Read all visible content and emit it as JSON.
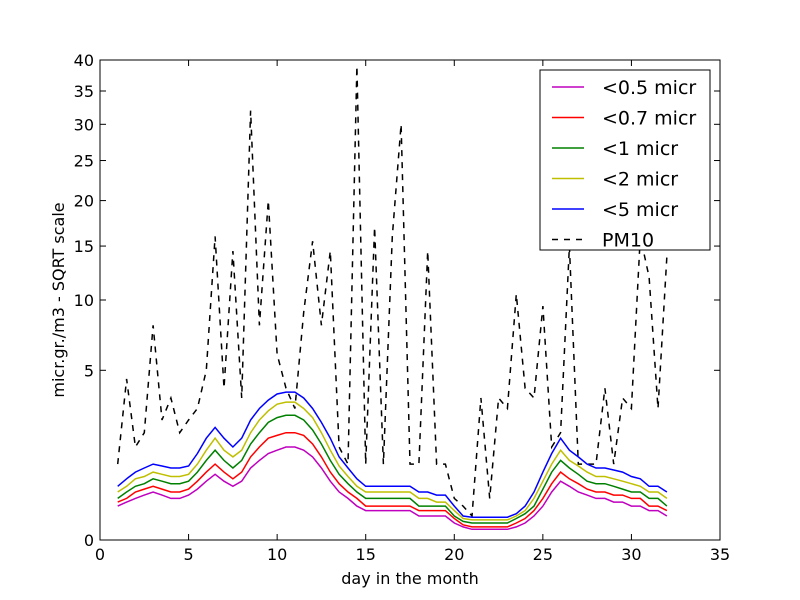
{
  "chart_data": {
    "type": "line",
    "title": "",
    "xlabel": "day in the month",
    "ylabel": "micr.gr./m3 - SQRT scale",
    "xlim": [
      0,
      35
    ],
    "ylim": [
      0,
      40
    ],
    "y_scale": "sqrt",
    "grid": false,
    "legend_position": "top-right",
    "x_ticks": [
      "0",
      "5",
      "10",
      "15",
      "20",
      "25",
      "30",
      "35"
    ],
    "y_ticks": [
      "0",
      "5",
      "10",
      "15",
      "20",
      "25",
      "30",
      "35",
      "40"
    ],
    "x_tick_values": [
      0,
      5,
      10,
      15,
      20,
      25,
      30,
      35
    ],
    "y_tick_values": [
      0,
      5,
      10,
      15,
      20,
      25,
      30,
      35,
      40
    ],
    "x": [
      1.0,
      1.5,
      2.0,
      2.5,
      3.0,
      3.5,
      4.0,
      4.5,
      5.0,
      5.5,
      6.0,
      6.5,
      7.0,
      7.5,
      8.0,
      8.5,
      9.0,
      9.5,
      10.0,
      10.5,
      11.0,
      11.5,
      12.0,
      12.5,
      13.0,
      13.5,
      14.0,
      14.5,
      15.0,
      15.5,
      16.0,
      16.5,
      17.0,
      17.5,
      18.0,
      18.5,
      19.0,
      19.5,
      20.0,
      20.5,
      21.0,
      21.5,
      22.0,
      22.5,
      23.0,
      23.5,
      24.0,
      24.5,
      25.0,
      25.5,
      26.0,
      26.5,
      27.0,
      27.5,
      28.0,
      28.5,
      29.0,
      29.5,
      30.0,
      30.5,
      31.0,
      31.5,
      32.0
    ],
    "series": [
      {
        "name": "<0.5 micr",
        "color": "#bf00bf",
        "dash": "solid",
        "values": [
          0.2,
          0.25,
          0.3,
          0.35,
          0.4,
          0.35,
          0.3,
          0.3,
          0.35,
          0.45,
          0.6,
          0.75,
          0.6,
          0.5,
          0.6,
          0.9,
          1.1,
          1.3,
          1.4,
          1.5,
          1.5,
          1.4,
          1.2,
          0.9,
          0.6,
          0.4,
          0.3,
          0.2,
          0.15,
          0.15,
          0.15,
          0.15,
          0.15,
          0.15,
          0.1,
          0.1,
          0.1,
          0.1,
          0.05,
          0.03,
          0.02,
          0.02,
          0.02,
          0.02,
          0.02,
          0.03,
          0.05,
          0.1,
          0.2,
          0.4,
          0.6,
          0.5,
          0.4,
          0.35,
          0.3,
          0.3,
          0.25,
          0.25,
          0.2,
          0.2,
          0.15,
          0.15,
          0.1
        ]
      },
      {
        "name": "<0.7 micr",
        "color": "#ff0000",
        "dash": "solid",
        "values": [
          0.25,
          0.3,
          0.4,
          0.45,
          0.5,
          0.45,
          0.4,
          0.4,
          0.45,
          0.6,
          0.8,
          1.0,
          0.8,
          0.65,
          0.8,
          1.2,
          1.5,
          1.8,
          1.9,
          2.0,
          2.0,
          1.9,
          1.6,
          1.2,
          0.8,
          0.55,
          0.4,
          0.3,
          0.2,
          0.2,
          0.2,
          0.2,
          0.2,
          0.2,
          0.15,
          0.15,
          0.15,
          0.15,
          0.08,
          0.04,
          0.03,
          0.03,
          0.03,
          0.03,
          0.03,
          0.05,
          0.08,
          0.15,
          0.3,
          0.55,
          0.8,
          0.65,
          0.55,
          0.45,
          0.4,
          0.4,
          0.35,
          0.35,
          0.3,
          0.3,
          0.2,
          0.2,
          0.15
        ]
      },
      {
        "name": "<1 micr",
        "color": "#008000",
        "dash": "solid",
        "values": [
          0.3,
          0.4,
          0.5,
          0.55,
          0.65,
          0.6,
          0.55,
          0.55,
          0.6,
          0.8,
          1.1,
          1.4,
          1.1,
          0.9,
          1.1,
          1.6,
          2.0,
          2.4,
          2.6,
          2.7,
          2.7,
          2.5,
          2.1,
          1.6,
          1.1,
          0.75,
          0.55,
          0.4,
          0.3,
          0.3,
          0.3,
          0.3,
          0.3,
          0.3,
          0.2,
          0.2,
          0.2,
          0.2,
          0.1,
          0.06,
          0.05,
          0.05,
          0.05,
          0.05,
          0.05,
          0.08,
          0.12,
          0.2,
          0.45,
          0.8,
          1.1,
          0.9,
          0.75,
          0.6,
          0.55,
          0.55,
          0.5,
          0.45,
          0.4,
          0.4,
          0.3,
          0.3,
          0.2
        ]
      },
      {
        "name": "<2 micr",
        "color": "#bfbf00",
        "dash": "solid",
        "values": [
          0.4,
          0.5,
          0.65,
          0.7,
          0.8,
          0.75,
          0.7,
          0.7,
          0.75,
          1.0,
          1.4,
          1.8,
          1.4,
          1.2,
          1.4,
          2.0,
          2.5,
          2.9,
          3.2,
          3.3,
          3.3,
          3.0,
          2.6,
          2.0,
          1.4,
          0.95,
          0.7,
          0.5,
          0.4,
          0.4,
          0.4,
          0.4,
          0.4,
          0.4,
          0.3,
          0.3,
          0.25,
          0.25,
          0.15,
          0.08,
          0.07,
          0.07,
          0.07,
          0.07,
          0.07,
          0.1,
          0.15,
          0.3,
          0.6,
          1.0,
          1.4,
          1.1,
          0.95,
          0.8,
          0.7,
          0.7,
          0.65,
          0.6,
          0.55,
          0.5,
          0.4,
          0.4,
          0.3
        ]
      },
      {
        "name": "<5 micr",
        "color": "#0000ff",
        "dash": "solid",
        "values": [
          0.5,
          0.65,
          0.8,
          0.9,
          1.0,
          0.95,
          0.9,
          0.9,
          0.95,
          1.3,
          1.8,
          2.2,
          1.8,
          1.5,
          1.8,
          2.5,
          3.0,
          3.4,
          3.7,
          3.8,
          3.8,
          3.5,
          3.0,
          2.4,
          1.8,
          1.2,
          0.9,
          0.65,
          0.5,
          0.5,
          0.5,
          0.5,
          0.5,
          0.5,
          0.4,
          0.4,
          0.35,
          0.35,
          0.2,
          0.1,
          0.09,
          0.09,
          0.09,
          0.09,
          0.09,
          0.12,
          0.2,
          0.4,
          0.8,
          1.3,
          1.8,
          1.4,
          1.2,
          1.0,
          0.9,
          0.9,
          0.85,
          0.8,
          0.7,
          0.65,
          0.5,
          0.5,
          0.4
        ]
      },
      {
        "name": "PM10",
        "color": "#000000",
        "dash": "dashed",
        "values": [
          1.0,
          4.5,
          1.5,
          2.0,
          8.0,
          2.5,
          3.5,
          2.0,
          2.5,
          3.0,
          5.0,
          16.0,
          4.0,
          14.5,
          3.5,
          32.0,
          8.0,
          20.0,
          6.0,
          4.0,
          3.0,
          9.0,
          15.5,
          8.0,
          14.5,
          1.5,
          1.0,
          39.0,
          1.0,
          17.0,
          1.0,
          16.0,
          30.0,
          1.0,
          1.0,
          14.5,
          1.0,
          1.0,
          0.3,
          0.2,
          0.1,
          3.5,
          0.3,
          3.5,
          3.0,
          10.5,
          4.0,
          3.5,
          9.5,
          1.5,
          2.0,
          15.0,
          1.0,
          1.0,
          1.0,
          4.0,
          1.0,
          3.5,
          3.0,
          16.0,
          12.0,
          3.0,
          14.0
        ]
      }
    ]
  }
}
